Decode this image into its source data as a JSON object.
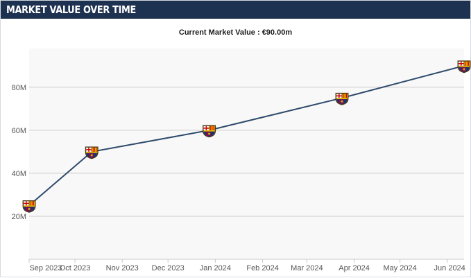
{
  "header": {
    "title": "MARKET VALUE OVER TIME"
  },
  "summary": {
    "current_label": "Current Market Value : €90.00m"
  },
  "colors": {
    "header_bg": "#1d3150",
    "line": "#2e4a6b",
    "plot_bg": "#f8f8f8",
    "grid": "#cccccc",
    "crest_blue": "#1b2f7a",
    "crest_red": "#a50044",
    "crest_gold": "#edbb00"
  },
  "chart_data": {
    "type": "line",
    "title": "",
    "xlabel": "",
    "ylabel": "",
    "x_ticks": [
      "Sep 2023",
      "Oct 2023",
      "Nov 2023",
      "Dec 2023",
      "Jan 2024",
      "Feb 2024",
      "Mar 2024",
      "Apr 2024",
      "May 2024",
      "Jun 2024"
    ],
    "y_ticks": [
      {
        "value": 20,
        "label": "20M"
      },
      {
        "value": 40,
        "label": "40M"
      },
      {
        "value": 60,
        "label": "60M"
      },
      {
        "value": 80,
        "label": "80M"
      }
    ],
    "ylim": [
      0,
      98
    ],
    "xlim": [
      "2023-09-01",
      "2024-06-12"
    ],
    "grid": true,
    "marker_icon": "club-crest-icon",
    "series": [
      {
        "points": [
          {
            "date": "2023-09-01",
            "value": 25
          },
          {
            "date": "2023-10-12",
            "value": 50
          },
          {
            "date": "2023-12-28",
            "value": 60
          },
          {
            "date": "2024-03-24",
            "value": 75
          },
          {
            "date": "2024-06-12",
            "value": 90
          }
        ]
      }
    ]
  }
}
